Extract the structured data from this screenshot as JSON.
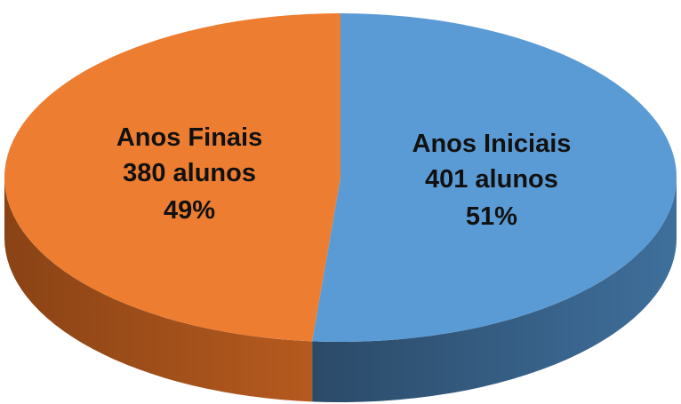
{
  "chart_data": {
    "type": "pie3d",
    "categories": [
      "Anos Iniciais",
      "Anos Finais"
    ],
    "values": [
      401,
      380
    ],
    "value_labels": [
      "401 alunos",
      "380 alunos"
    ],
    "percents": [
      51,
      49
    ],
    "percent_labels": [
      "51%",
      "49%"
    ],
    "colors": [
      "#5b9bd5",
      "#ed7d31"
    ],
    "side_colors": [
      [
        "#2b4a68",
        "#3f6f9c"
      ],
      [
        "#b55a1f",
        "#8a4315"
      ]
    ]
  }
}
